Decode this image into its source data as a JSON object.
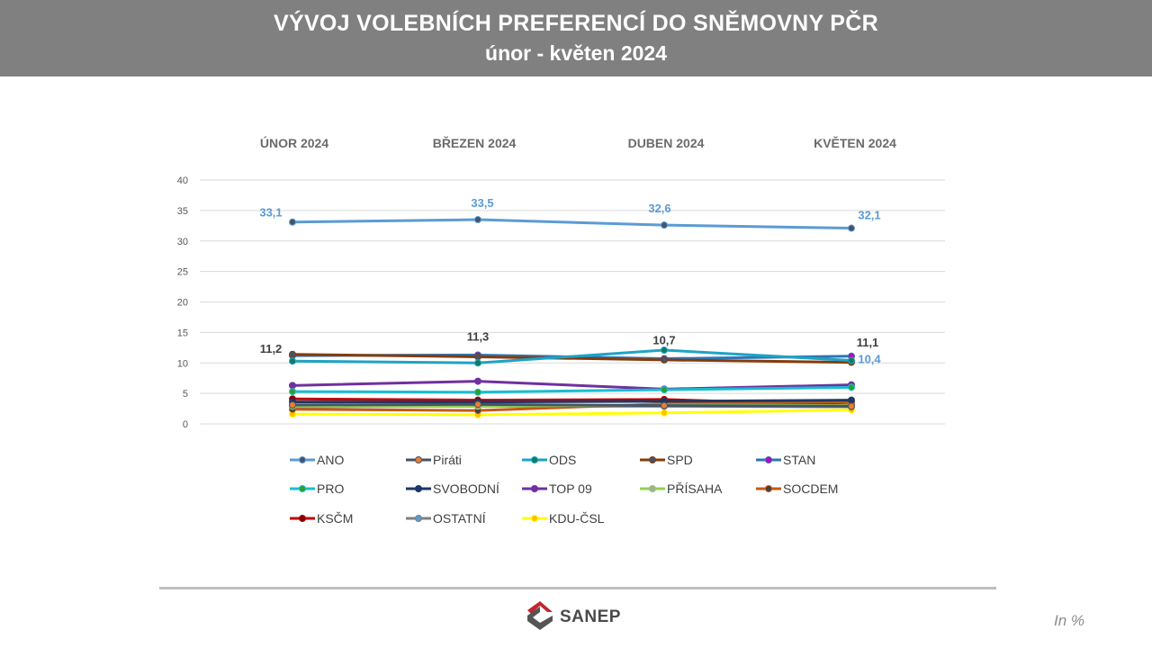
{
  "header": {
    "title": "VÝVOJ VOLEBNÍCH PREFERENCÍ DO SNĚMOVNY PČR",
    "subtitle": "únor - květen 2024"
  },
  "units_label": "In %",
  "logo": {
    "text": "SANEP"
  },
  "chart_data": {
    "type": "line",
    "categories": [
      "ÚNOR 2024",
      "BŘEZEN 2024",
      "DUBEN 2024",
      "KVĚTEN 2024"
    ],
    "ylim": [
      0,
      40
    ],
    "yticks": [
      "0",
      "5",
      "10",
      "15",
      "20",
      "25",
      "30",
      "35",
      "40"
    ],
    "grid": true,
    "legend_position": "bottom",
    "series": [
      {
        "name": "ANO",
        "color": "#5b9bd5",
        "marker": "#44546a",
        "values": [
          33.1,
          33.5,
          32.6,
          32.1
        ],
        "labels": [
          "33,1",
          "33,5",
          "32,6",
          "32,1"
        ],
        "label_color": "#5b9bd5"
      },
      {
        "name": "Piráti",
        "color": "#44546a",
        "marker": "#ed7d31",
        "values": [
          3.1,
          3.2,
          3.0,
          2.9
        ]
      },
      {
        "name": "ODS",
        "color": "#1fa3c4",
        "marker": "#0e7c61",
        "values": [
          10.3,
          10.0,
          12.1,
          10.4
        ],
        "labels": [
          "",
          "",
          "",
          "10,4"
        ],
        "label_color": "#5b9bd5"
      },
      {
        "name": "SPD",
        "color": "#843c0c",
        "marker": "#44546a",
        "values": [
          11.4,
          11.0,
          10.5,
          10.1
        ]
      },
      {
        "name": "STAN",
        "color": "#2e75b6",
        "marker": "#c000c0",
        "values": [
          11.2,
          11.3,
          10.7,
          11.1
        ],
        "labels": [
          "11,2",
          "11,3",
          "10,7",
          "11,1"
        ],
        "label_color": "#404040"
      },
      {
        "name": "PRO",
        "color": "#17becf",
        "marker": "#2ca02c",
        "values": [
          5.3,
          5.2,
          5.6,
          6.0
        ]
      },
      {
        "name": "SVOBODNÍ",
        "color": "#1f3864",
        "marker": "#1f3864",
        "values": [
          3.6,
          3.6,
          3.7,
          3.9
        ]
      },
      {
        "name": "TOP 09",
        "color": "#7030a0",
        "marker": "#7030a0",
        "values": [
          6.3,
          7.0,
          5.7,
          6.4
        ]
      },
      {
        "name": "PŘÍSAHA",
        "color": "#92d050",
        "marker": "#a9a9a9",
        "values": [
          2.9,
          2.9,
          3.1,
          3.0
        ]
      },
      {
        "name": "SOCDEM",
        "color": "#c55a11",
        "marker": "#404040",
        "values": [
          2.4,
          2.2,
          3.3,
          3.6
        ]
      },
      {
        "name": "KSČM",
        "color": "#c00000",
        "marker": "#7b0000",
        "values": [
          4.1,
          3.9,
          4.0,
          3.1
        ]
      },
      {
        "name": "OSTATNÍ",
        "color": "#7f7f7f",
        "marker": "#5b9bd5",
        "values": [
          2.8,
          2.9,
          2.9,
          2.8
        ]
      },
      {
        "name": "KDU-ČSL",
        "color": "#ffff00",
        "marker": "#ffc000",
        "values": [
          1.6,
          1.5,
          1.8,
          2.3
        ]
      }
    ]
  }
}
